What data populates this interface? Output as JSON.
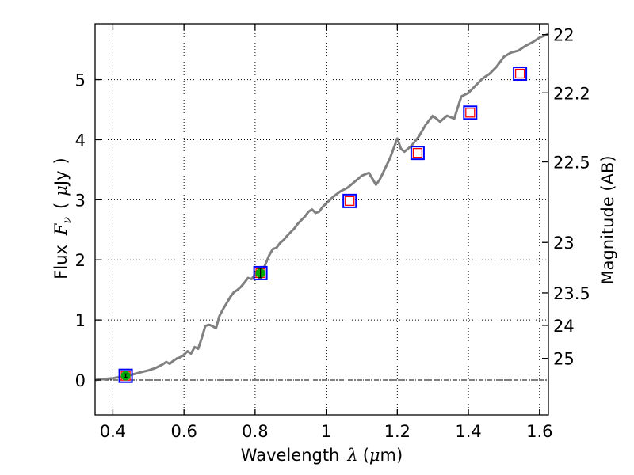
{
  "chart_data": {
    "type": "line",
    "xlabel": "Wavelength  λ (μm)",
    "ylabel": "Flux  F_ν  ( μJy )",
    "ylabel_parts": {
      "prefix": "Flux",
      "symbol": "F",
      "subscript": "ν",
      "open": "(",
      "mu": "μ",
      "unit": "Jy",
      "close": ")"
    },
    "xlabel_parts": {
      "text": "Wavelength",
      "symbol": "λ",
      "open": "(",
      "mu": "μ",
      "unit": "m)"
    },
    "y2label": "Magnitude (AB)",
    "xlim": [
      0.35,
      1.625
    ],
    "ylim": [
      -0.58,
      5.93
    ],
    "grid": true,
    "x_ticks": [
      0.4,
      0.6,
      0.8,
      1.0,
      1.2,
      1.4,
      1.6
    ],
    "x_tick_labels": [
      "0.4",
      "0.6",
      "0.8",
      "1",
      "1.2",
      "1.4",
      "1.6"
    ],
    "y_ticks": [
      0,
      1,
      2,
      3,
      4,
      5
    ],
    "y_tick_labels": [
      "0",
      "1",
      "2",
      "3",
      "4",
      "5"
    ],
    "y2_ticks": [
      {
        "label": "22",
        "flux": 5.75
      },
      {
        "label": "22.2",
        "flux": 4.78
      },
      {
        "label": "22.5",
        "flux": 3.63
      },
      {
        "label": "23",
        "flux": 2.29
      },
      {
        "label": "23.5",
        "flux": 1.45
      },
      {
        "label": "24",
        "flux": 0.91
      },
      {
        "label": "25",
        "flux": 0.36
      }
    ],
    "colors": {
      "model": "#808080",
      "square_outer": "#0000ff",
      "square_inner": "#ff0000",
      "detection": "#00aa00",
      "zero_line": "#000000"
    },
    "series": [
      {
        "type": "line",
        "x": [
          0.35,
          0.38,
          0.4,
          0.42,
          0.44,
          0.46,
          0.48,
          0.5,
          0.52,
          0.53,
          0.54,
          0.55,
          0.56,
          0.57,
          0.58,
          0.59,
          0.6,
          0.61,
          0.62,
          0.63,
          0.64,
          0.65,
          0.655,
          0.66,
          0.67,
          0.68,
          0.69,
          0.7,
          0.71,
          0.72,
          0.73,
          0.74,
          0.75,
          0.76,
          0.77,
          0.78,
          0.79,
          0.8,
          0.81,
          0.82,
          0.83,
          0.84,
          0.85,
          0.86,
          0.87,
          0.88,
          0.89,
          0.9,
          0.91,
          0.92,
          0.93,
          0.94,
          0.95,
          0.96,
          0.97,
          0.98,
          0.99,
          1.0,
          1.02,
          1.04,
          1.06,
          1.08,
          1.1,
          1.12,
          1.14,
          1.15,
          1.16,
          1.18,
          1.2,
          1.21,
          1.22,
          1.24,
          1.26,
          1.28,
          1.3,
          1.32,
          1.34,
          1.36,
          1.38,
          1.4,
          1.42,
          1.44,
          1.46,
          1.48,
          1.5,
          1.52,
          1.54,
          1.56,
          1.58,
          1.6,
          1.625
        ],
        "y": [
          0.0,
          0.02,
          0.03,
          0.05,
          0.07,
          0.1,
          0.13,
          0.16,
          0.2,
          0.23,
          0.26,
          0.3,
          0.27,
          0.32,
          0.36,
          0.38,
          0.42,
          0.48,
          0.44,
          0.55,
          0.52,
          0.7,
          0.8,
          0.9,
          0.92,
          0.9,
          0.86,
          1.07,
          1.18,
          1.28,
          1.38,
          1.46,
          1.5,
          1.55,
          1.62,
          1.7,
          1.68,
          1.76,
          1.86,
          1.8,
          1.94,
          2.08,
          2.18,
          2.2,
          2.28,
          2.33,
          2.4,
          2.46,
          2.52,
          2.6,
          2.66,
          2.72,
          2.8,
          2.84,
          2.78,
          2.8,
          2.88,
          2.94,
          3.05,
          3.14,
          3.2,
          3.3,
          3.4,
          3.45,
          3.25,
          3.33,
          3.45,
          3.7,
          4.02,
          3.85,
          3.8,
          3.9,
          4.05,
          4.25,
          4.4,
          4.3,
          4.4,
          4.35,
          4.72,
          4.78,
          4.9,
          5.02,
          5.1,
          5.22,
          5.38,
          5.45,
          5.48,
          5.56,
          5.62,
          5.7,
          5.76
        ]
      },
      {
        "type": "marker",
        "x": [
          0.436,
          0.815,
          1.066,
          1.257,
          1.405,
          1.545
        ],
        "y": [
          0.07,
          1.78,
          2.98,
          3.78,
          4.45,
          5.1
        ]
      },
      {
        "type": "detection",
        "x": [
          0.436,
          0.815
        ],
        "y": [
          0.07,
          1.78
        ],
        "yerr": [
          0.03,
          0.08
        ]
      }
    ]
  }
}
